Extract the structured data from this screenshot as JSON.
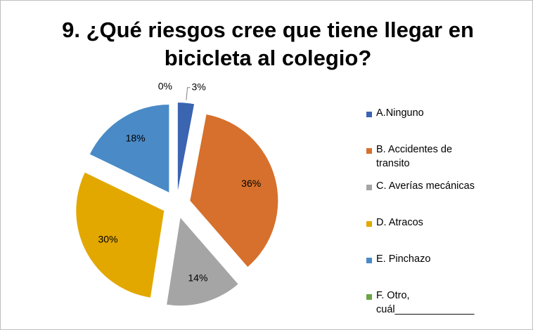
{
  "chart_data": {
    "type": "pie",
    "title": "9. ¿Qué riesgos cree que tiene llegar en bicicleta al colegio?",
    "categories": [
      "A.Ninguno",
      "B. Accidentes de transito",
      "C. Averías mecánicas",
      "D. Atracos",
      "E. Pinchazo",
      "F. Otro, cuál______________"
    ],
    "values": [
      3,
      36,
      14,
      30,
      18,
      0
    ],
    "value_labels": [
      "3%",
      "36%",
      "14%",
      "30%",
      "18%",
      "0%"
    ],
    "colors": [
      "#3b64b1",
      "#d6702c",
      "#a5a5a5",
      "#e2a800",
      "#4a8ac6",
      "#6aa444"
    ],
    "legend": "right"
  }
}
